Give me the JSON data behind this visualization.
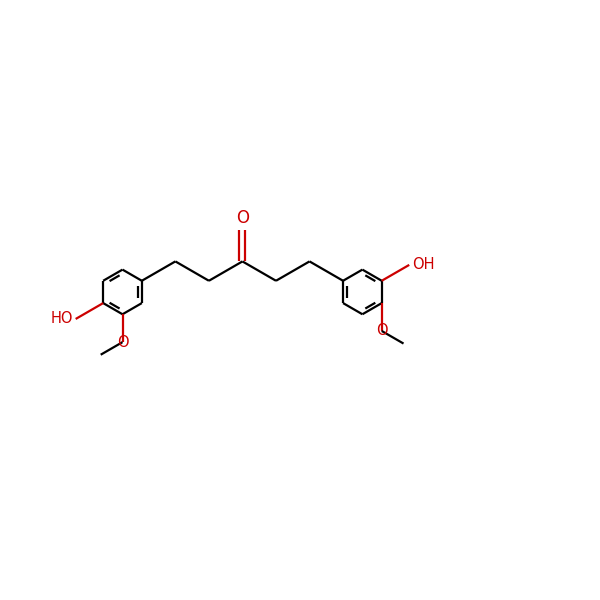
{
  "bg_color": "#ffffff",
  "bond_color": "#000000",
  "heteroatom_color": "#cc0000",
  "line_width": 1.6,
  "font_size_label": 10.5,
  "figsize": [
    6.0,
    6.0
  ],
  "dpi": 100,
  "bl": 0.72,
  "r_ring": 0.415,
  "xlim": [
    -0.5,
    10.5
  ],
  "ylim": [
    -3.2,
    3.2
  ]
}
